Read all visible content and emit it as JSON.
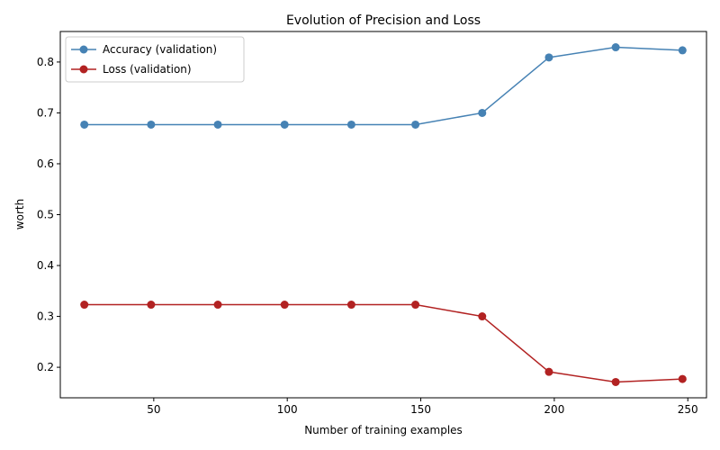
{
  "chart_data": {
    "type": "line",
    "title": "Evolution of Precision and Loss",
    "xlabel": "Number of training examples",
    "ylabel": "worth",
    "x": [
      24,
      49,
      74,
      99,
      124,
      148,
      173,
      198,
      223,
      248
    ],
    "xlim": [
      15,
      257
    ],
    "ylim": [
      0.14,
      0.86
    ],
    "xticks": [
      50,
      100,
      150,
      200,
      250
    ],
    "yticks": [
      0.2,
      0.3,
      0.4,
      0.5,
      0.6,
      0.7,
      0.8
    ],
    "grid": false,
    "legend_position": "top-left",
    "series": [
      {
        "name": "Accuracy (validation)",
        "color": "#4682b4",
        "values": [
          0.677,
          0.677,
          0.677,
          0.677,
          0.677,
          0.677,
          0.7,
          0.809,
          0.829,
          0.823
        ]
      },
      {
        "name": "Loss (validation)",
        "color": "#b22222",
        "values": [
          0.323,
          0.323,
          0.323,
          0.323,
          0.323,
          0.323,
          0.3,
          0.191,
          0.171,
          0.177
        ]
      }
    ]
  }
}
